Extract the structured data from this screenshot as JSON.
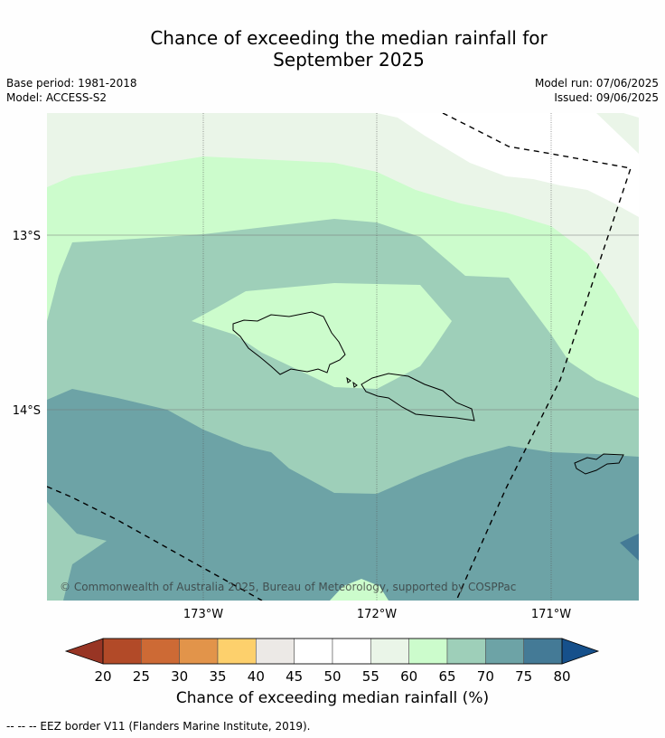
{
  "title_line1": "Chance of exceeding the median rainfall for",
  "title_line2": "September 2025",
  "meta": {
    "base_period": "Base period: 1981-2018",
    "model": "Model: ACCESS-S2",
    "model_run": "Model run: 07/06/2025",
    "issued": "Issued: 09/06/2025"
  },
  "map": {
    "lat_labels": [
      "13°S",
      "14°S"
    ],
    "lon_labels": [
      "173°W",
      "172°W",
      "171°W"
    ],
    "copyright": "© Commonwealth of Australia 2025, Bureau of Meteorology, supported by COSPPac"
  },
  "colorbar": {
    "ticks": [
      "20",
      "25",
      "30",
      "35",
      "40",
      "45",
      "50",
      "55",
      "60",
      "65",
      "70",
      "75",
      "80"
    ],
    "colors": [
      "#b24a28",
      "#cd6a35",
      "#e2944a",
      "#fdd06c",
      "#ece9e6",
      "#ffffff",
      "#ffffff",
      "#eaf5e8",
      "#ccfccc",
      "#9ecfb9",
      "#6da3a6",
      "#447a96"
    ],
    "low_extend_color": "#983524",
    "high_extend_color": "#16508b",
    "label": "Chance of exceeding median rainfall (%)"
  },
  "footnote": "--  --  -- EEZ border V11 (Flanders Marine Institute, 2019)."
}
